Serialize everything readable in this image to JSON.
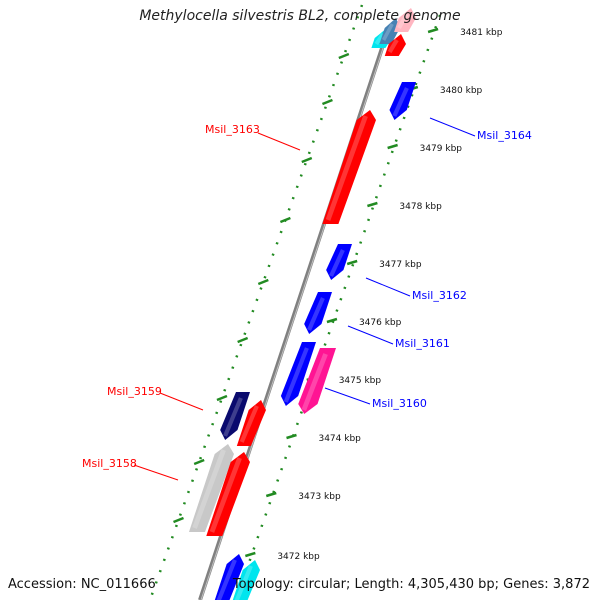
{
  "title": "Methylocella silvestris BL2, complete genome",
  "accession": "Accession: NC_011666",
  "topology": "Topology: circular; Length: 4,305,430 bp; Genes: 3,872",
  "colors": {
    "red": "#ff0000",
    "blue": "#0000ff",
    "navy": "#0a0a6e",
    "magenta": "#ff1493",
    "cyan": "#00e5ee",
    "grey": "#c8c8c8",
    "steelblue": "#4682b4",
    "pink": "#ffb6c1",
    "backbone": "#808080",
    "tick": "#228b22"
  },
  "ticks": [
    {
      "label": "3481 kbp"
    },
    {
      "label": "3480 kbp"
    },
    {
      "label": "3479 kbp"
    },
    {
      "label": "3478 kbp"
    },
    {
      "label": "3477 kbp"
    },
    {
      "label": "3476 kbp"
    },
    {
      "label": "3475 kbp"
    },
    {
      "label": "3474 kbp"
    },
    {
      "label": "3473 kbp"
    },
    {
      "label": "3472 kbp"
    }
  ],
  "gene_labels": [
    {
      "name": "Msil_3163",
      "color": "red"
    },
    {
      "name": "Msil_3164",
      "color": "blue"
    },
    {
      "name": "Msil_3162",
      "color": "blue"
    },
    {
      "name": "Msil_3161",
      "color": "blue"
    },
    {
      "name": "Msil_3160",
      "color": "blue"
    },
    {
      "name": "Msil_3159",
      "color": "red"
    },
    {
      "name": "Msil_3158",
      "color": "red"
    }
  ]
}
